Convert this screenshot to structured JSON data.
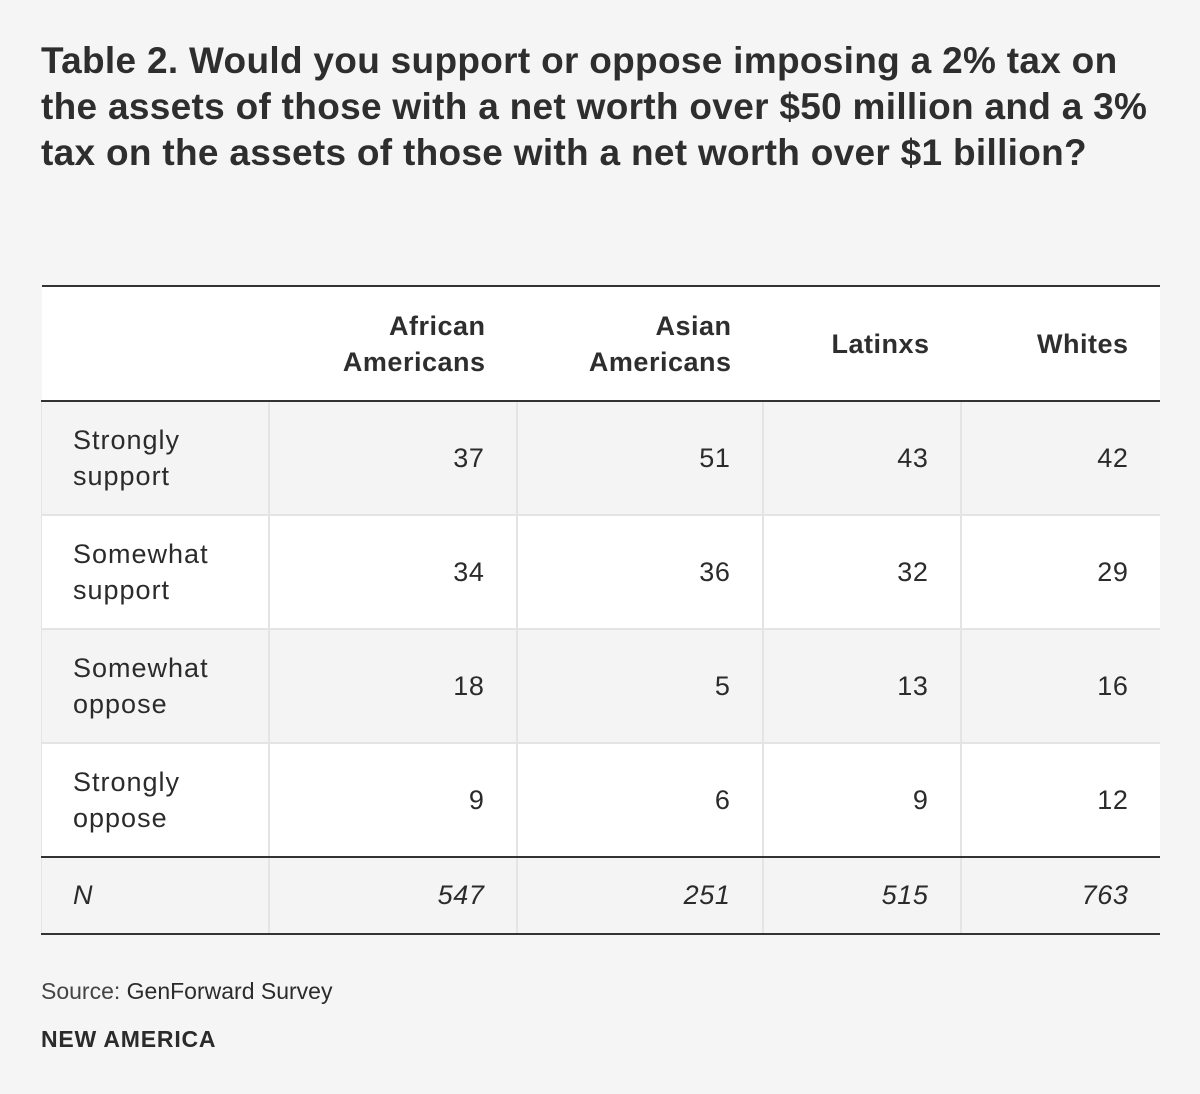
{
  "title": "Table 2. Would you support or oppose imposing a 2% tax on the assets of those with a net worth over $50 million and a 3% tax on the assets of those with a net worth over $1 billion?",
  "chart_data": {
    "type": "table",
    "title": "Table 2. Would you support or oppose imposing a 2% tax on the assets of those with a net worth over $50 million and a 3% tax on the assets of those with a net worth over $1 billion?",
    "columns": [
      "African Americans",
      "Asian Americans",
      "Latinxs",
      "Whites"
    ],
    "rows": [
      {
        "label": "Strongly support",
        "values": [
          37,
          51,
          43,
          42
        ]
      },
      {
        "label": "Somewhat support",
        "values": [
          34,
          36,
          32,
          29
        ]
      },
      {
        "label": "Somewhat oppose",
        "values": [
          18,
          5,
          13,
          16
        ]
      },
      {
        "label": "Strongly oppose",
        "values": [
          9,
          6,
          9,
          12
        ]
      }
    ],
    "n_row": {
      "label": "N",
      "values": [
        547,
        251,
        515,
        763
      ]
    }
  },
  "source": {
    "label": "Source:",
    "text": "GenForward Survey"
  },
  "brand": "NEW AMERICA"
}
